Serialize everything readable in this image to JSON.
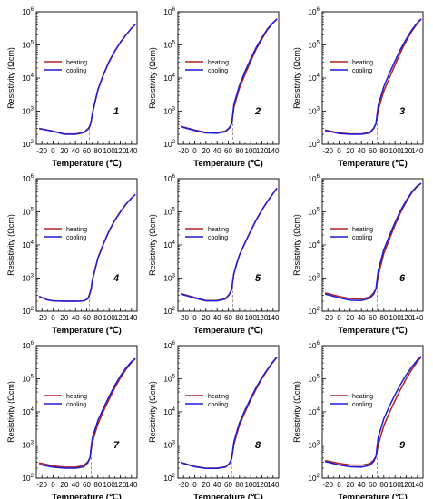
{
  "colors": {
    "heating": "#b22222",
    "cooling": "#1c1cd6",
    "guide": "#888888",
    "axis": "#000000"
  },
  "chart_data": [
    {
      "type": "line",
      "label": "1",
      "xlabel": "Temperature (℃)",
      "ylabel": "Resistivity (Ωcm)",
      "xticks": [
        "-20",
        "0",
        "20",
        "40",
        "60",
        "80",
        "100",
        "120",
        "140"
      ],
      "ytick_exponents": [
        2,
        3,
        4,
        5,
        6
      ],
      "ylog": true,
      "ylim": [
        100,
        1000000
      ],
      "xlim": [
        -30,
        150
      ],
      "transition_marker_x": 65,
      "legend_position": "left",
      "grid": false,
      "series": [
        {
          "name": "heating",
          "x": [
            -25,
            0,
            20,
            40,
            55,
            62,
            65,
            68,
            70,
            75,
            80,
            90,
            100,
            110,
            120,
            130,
            140,
            147
          ],
          "y": [
            300,
            250,
            205,
            205,
            230,
            290,
            340,
            480,
            850,
            2000,
            4500,
            13000,
            32000,
            65000,
            120000,
            200000,
            320000,
            420000
          ]
        },
        {
          "name": "cooling",
          "x": [
            -25,
            0,
            20,
            40,
            55,
            62,
            65,
            68,
            70,
            75,
            80,
            90,
            100,
            110,
            120,
            130,
            140,
            147
          ],
          "y": [
            300,
            245,
            200,
            200,
            225,
            280,
            330,
            470,
            820,
            1900,
            4300,
            12500,
            31000,
            63000,
            118000,
            198000,
            318000,
            415000
          ]
        }
      ]
    },
    {
      "type": "line",
      "label": "2",
      "xlabel": "Temperature (℃)",
      "ylabel": "Resistivity (Ωcm)",
      "xticks": [
        "-20",
        "0",
        "20",
        "40",
        "60",
        "80",
        "100",
        "120",
        "140"
      ],
      "ytick_exponents": [
        2,
        3,
        4,
        5,
        6
      ],
      "ylog": true,
      "ylim": [
        100,
        1000000
      ],
      "xlim": [
        -30,
        150
      ],
      "transition_marker_x": 68,
      "legend_position": "left",
      "grid": false,
      "series": [
        {
          "name": "heating",
          "x": [
            -25,
            0,
            20,
            40,
            55,
            62,
            66,
            68,
            70,
            75,
            80,
            90,
            100,
            110,
            120,
            130,
            140,
            147
          ],
          "y": [
            350,
            270,
            230,
            225,
            250,
            320,
            420,
            700,
            1300,
            2600,
            5000,
            13000,
            32000,
            75000,
            150000,
            290000,
            460000,
            600000
          ]
        },
        {
          "name": "cooling",
          "x": [
            -25,
            0,
            20,
            40,
            55,
            62,
            66,
            68,
            70,
            75,
            80,
            90,
            100,
            110,
            120,
            130,
            140,
            147
          ],
          "y": [
            340,
            260,
            220,
            215,
            240,
            310,
            420,
            800,
            1600,
            3200,
            6000,
            16000,
            38000,
            85000,
            165000,
            305000,
            470000,
            610000
          ]
        }
      ]
    },
    {
      "type": "line",
      "label": "3",
      "xlabel": "Temperature (℃)",
      "ylabel": "Resistivity (Ωcm)",
      "xticks": [
        "-20",
        "0",
        "20",
        "40",
        "60",
        "80",
        "100",
        "120",
        "140"
      ],
      "ytick_exponents": [
        2,
        3,
        4,
        5,
        6
      ],
      "ylog": true,
      "ylim": [
        100,
        1000000
      ],
      "xlim": [
        -30,
        150
      ],
      "transition_marker_x": 68,
      "legend_position": "left",
      "grid": false,
      "series": [
        {
          "name": "heating",
          "x": [
            -25,
            0,
            20,
            40,
            55,
            62,
            66,
            68,
            70,
            75,
            80,
            90,
            100,
            110,
            120,
            130,
            140,
            147
          ],
          "y": [
            270,
            220,
            205,
            205,
            230,
            310,
            420,
            650,
            1100,
            2100,
            4000,
            10000,
            25000,
            60000,
            130000,
            260000,
            450000,
            600000
          ]
        },
        {
          "name": "cooling",
          "x": [
            -25,
            0,
            20,
            40,
            55,
            62,
            66,
            68,
            70,
            75,
            80,
            90,
            100,
            110,
            120,
            130,
            140,
            147
          ],
          "y": [
            260,
            210,
            200,
            200,
            220,
            300,
            420,
            800,
            1500,
            2900,
            5500,
            14000,
            33000,
            75000,
            150000,
            285000,
            470000,
            610000
          ]
        }
      ]
    },
    {
      "type": "line",
      "label": "4",
      "xlabel": "Temperature (℃)",
      "ylabel": "Resistivity (Ωcm)",
      "xticks": [
        "-20",
        "0",
        "20",
        "40",
        "60",
        "80",
        "100",
        "120",
        "140"
      ],
      "ytick_exponents": [
        2,
        3,
        4,
        5,
        6
      ],
      "ylog": true,
      "ylim": [
        100,
        1000000
      ],
      "xlim": [
        -30,
        150
      ],
      "transition_marker_x": 65,
      "legend_position": "left",
      "grid": false,
      "series": [
        {
          "name": "heating",
          "x": [
            -25,
            -10,
            0,
            20,
            40,
            55,
            62,
            65,
            68,
            70,
            75,
            80,
            90,
            100,
            110,
            120,
            130,
            140,
            147
          ],
          "y": [
            280,
            220,
            205,
            200,
            200,
            205,
            240,
            320,
            480,
            850,
            1900,
            4000,
            11000,
            27000,
            55000,
            100000,
            170000,
            260000,
            340000
          ]
        },
        {
          "name": "cooling",
          "x": [
            -25,
            -10,
            0,
            20,
            40,
            55,
            62,
            65,
            68,
            70,
            75,
            80,
            90,
            100,
            110,
            120,
            130,
            140,
            147
          ],
          "y": [
            280,
            220,
            205,
            200,
            200,
            205,
            235,
            310,
            460,
            820,
            1850,
            3900,
            10800,
            26500,
            54000,
            99000,
            168000,
            258000,
            335000
          ]
        }
      ]
    },
    {
      "type": "line",
      "label": "5",
      "xlabel": "Temperature (℃)",
      "ylabel": "Resistivity (Ωcm)",
      "xticks": [
        "-20",
        "0",
        "20",
        "40",
        "60",
        "80",
        "100",
        "120",
        "140"
      ],
      "ytick_exponents": [
        2,
        3,
        4,
        5,
        6
      ],
      "ylog": true,
      "ylim": [
        100,
        1000000
      ],
      "xlim": [
        -30,
        150
      ],
      "transition_marker_x": 68,
      "legend_position": "left",
      "grid": false,
      "series": [
        {
          "name": "heating",
          "x": [
            -25,
            0,
            20,
            40,
            55,
            62,
            66,
            68,
            70,
            75,
            80,
            90,
            100,
            110,
            120,
            130,
            140,
            147
          ],
          "y": [
            340,
            260,
            210,
            210,
            240,
            330,
            460,
            800,
            1400,
            2800,
            5000,
            12000,
            27000,
            58000,
            115000,
            210000,
            360000,
            520000
          ]
        },
        {
          "name": "cooling",
          "x": [
            -25,
            0,
            20,
            40,
            55,
            62,
            66,
            68,
            70,
            75,
            80,
            90,
            100,
            110,
            120,
            130,
            140,
            147
          ],
          "y": [
            330,
            250,
            205,
            205,
            235,
            320,
            450,
            790,
            1380,
            2750,
            4950,
            11800,
            26500,
            57000,
            113000,
            208000,
            355000,
            515000
          ]
        }
      ]
    },
    {
      "type": "line",
      "label": "6",
      "xlabel": "Temperature (℃)",
      "ylabel": "Resistivity (Ωcm)",
      "xticks": [
        "-20",
        "0",
        "20",
        "40",
        "60",
        "80",
        "100",
        "120",
        "140"
      ],
      "ytick_exponents": [
        2,
        3,
        4,
        5,
        6
      ],
      "ylog": true,
      "ylim": [
        100,
        1000000
      ],
      "xlim": [
        -30,
        150
      ],
      "transition_marker_x": 68,
      "legend_position": "left",
      "grid": false,
      "series": [
        {
          "name": "heating",
          "x": [
            -25,
            0,
            20,
            40,
            55,
            62,
            66,
            68,
            70,
            75,
            80,
            90,
            100,
            110,
            120,
            130,
            140,
            147
          ],
          "y": [
            360,
            280,
            240,
            235,
            270,
            360,
            480,
            700,
            1200,
            2600,
            5500,
            15000,
            40000,
            95000,
            200000,
            380000,
            590000,
            720000
          ]
        },
        {
          "name": "cooling",
          "x": [
            -25,
            0,
            20,
            40,
            55,
            62,
            66,
            68,
            70,
            75,
            80,
            90,
            100,
            110,
            120,
            130,
            140,
            147
          ],
          "y": [
            330,
            255,
            215,
            210,
            245,
            330,
            470,
            900,
            1700,
            3500,
            7200,
            19000,
            48000,
            110000,
            220000,
            400000,
            610000,
            730000
          ]
        }
      ]
    },
    {
      "type": "line",
      "label": "7",
      "xlabel": "Temperature (℃)",
      "ylabel": "Resistivity (Ωcm)",
      "xticks": [
        "-20",
        "0",
        "20",
        "40",
        "60",
        "80",
        "100",
        "120",
        "140"
      ],
      "ytick_exponents": [
        2,
        3,
        4,
        5,
        6
      ],
      "ylog": true,
      "ylim": [
        100,
        1000000
      ],
      "xlim": [
        -30,
        150
      ],
      "transition_marker_x": 68,
      "legend_position": "left",
      "grid": false,
      "series": [
        {
          "name": "heating",
          "x": [
            -25,
            0,
            20,
            40,
            55,
            62,
            66,
            68,
            70,
            75,
            80,
            90,
            100,
            110,
            120,
            130,
            140,
            147
          ],
          "y": [
            290,
            235,
            215,
            215,
            240,
            310,
            420,
            700,
            1200,
            2300,
            4300,
            10500,
            24000,
            52000,
            105000,
            190000,
            310000,
            400000
          ]
        },
        {
          "name": "cooling",
          "x": [
            -25,
            0,
            20,
            40,
            55,
            62,
            66,
            68,
            70,
            75,
            80,
            90,
            100,
            110,
            120,
            130,
            140,
            147
          ],
          "y": [
            260,
            215,
            200,
            200,
            220,
            290,
            420,
            850,
            1600,
            3000,
            5500,
            13000,
            29000,
            62000,
            120000,
            210000,
            330000,
            410000
          ]
        }
      ]
    },
    {
      "type": "line",
      "label": "8",
      "xlabel": "Temperature (℃)",
      "ylabel": "Resistivity (Ωcm)",
      "xticks": [
        "-20",
        "0",
        "20",
        "40",
        "60",
        "80",
        "100",
        "120",
        "140"
      ],
      "ytick_exponents": [
        2,
        3,
        4,
        5,
        6
      ],
      "ylog": true,
      "ylim": [
        100,
        1000000
      ],
      "xlim": [
        -30,
        150
      ],
      "transition_marker_x": 66,
      "legend_position": "left",
      "grid": false,
      "series": [
        {
          "name": "heating",
          "x": [
            -25,
            0,
            20,
            40,
            55,
            62,
            66,
            68,
            70,
            75,
            80,
            90,
            100,
            110,
            120,
            130,
            140,
            147
          ],
          "y": [
            300,
            225,
            200,
            200,
            220,
            280,
            380,
            620,
            1050,
            2100,
            4000,
            10000,
            23000,
            50000,
            100000,
            185000,
            320000,
            450000
          ]
        },
        {
          "name": "cooling",
          "x": [
            -25,
            0,
            20,
            40,
            55,
            62,
            66,
            68,
            70,
            75,
            80,
            90,
            100,
            110,
            120,
            130,
            140,
            147
          ],
          "y": [
            295,
            220,
            198,
            198,
            215,
            275,
            390,
            700,
            1250,
            2500,
            4700,
            11500,
            26000,
            55000,
            108000,
            195000,
            330000,
            455000
          ]
        }
      ]
    },
    {
      "type": "line",
      "label": "9",
      "xlabel": "Temperature (℃)",
      "ylabel": "Resistivity (Ωcm)",
      "xticks": [
        "-20",
        "0",
        "20",
        "40",
        "60",
        "80",
        "100",
        "120",
        "140"
      ],
      "ytick_exponents": [
        2,
        3,
        4,
        5,
        6
      ],
      "ylog": true,
      "ylim": [
        100,
        1000000
      ],
      "xlim": [
        -30,
        150
      ],
      "transition_marker_x": 68,
      "legend_position": "left",
      "grid": false,
      "series": [
        {
          "name": "heating",
          "x": [
            -25,
            0,
            20,
            40,
            55,
            62,
            66,
            68,
            70,
            75,
            80,
            90,
            100,
            110,
            120,
            130,
            140,
            147
          ],
          "y": [
            340,
            280,
            250,
            245,
            275,
            350,
            460,
            650,
            1000,
            2000,
            3800,
            9500,
            22000,
            48000,
            100000,
            190000,
            330000,
            460000
          ]
        },
        {
          "name": "cooling",
          "x": [
            -25,
            0,
            20,
            40,
            55,
            62,
            66,
            68,
            70,
            75,
            80,
            90,
            100,
            110,
            120,
            130,
            140,
            147
          ],
          "y": [
            320,
            250,
            220,
            215,
            245,
            320,
            450,
            900,
            1700,
            3300,
            6200,
            15000,
            33000,
            68000,
            130000,
            230000,
            370000,
            480000
          ]
        }
      ]
    }
  ]
}
